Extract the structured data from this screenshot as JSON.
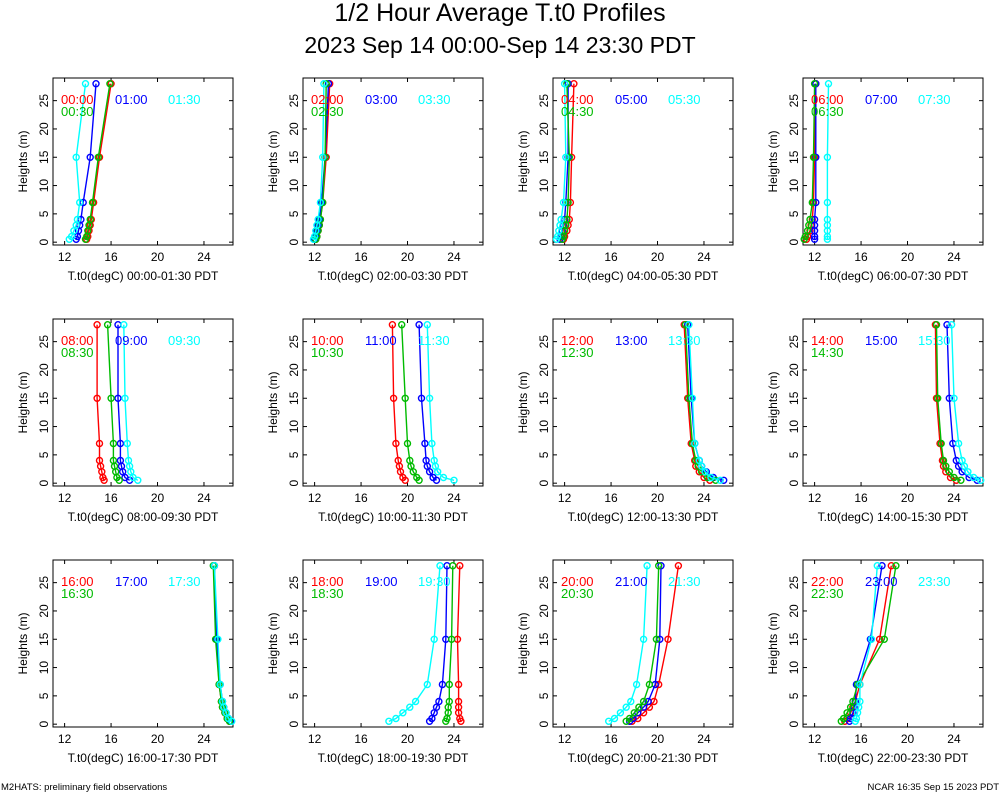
{
  "title": {
    "line1": "1/2 Hour Average T.t0 Profiles",
    "line2": "2023 Sep 14 00:00-Sep 14 23:30 PDT"
  },
  "footer": {
    "left": "M2HATS: preliminary field observations",
    "right": "NCAR 16:35 Sep 15 2023 PDT"
  },
  "colors": {
    "first": "#ff0000",
    "second": "#0000ff",
    "third": "#00bb00",
    "fourth": "#00ffff"
  },
  "chart_data": [
    {
      "type": "line",
      "title": "",
      "xlabel": "T.t0(degC) 00:00-01:30 PDT",
      "ylabel": "Heights (m)",
      "xlim": [
        11,
        26.5
      ],
      "ylim": [
        -0.5,
        29
      ],
      "xticks": [
        "12",
        "16",
        "20",
        "24"
      ],
      "yticks": [
        "0",
        "5",
        "10",
        "15",
        "20",
        "25"
      ],
      "heights": [
        0.5,
        1,
        2,
        3,
        4,
        7,
        15,
        28
      ],
      "series": [
        {
          "name": "00:00",
          "color": "#ff0000",
          "values": [
            13.9,
            14.0,
            14.1,
            14.2,
            14.3,
            14.5,
            15.0,
            16.0
          ]
        },
        {
          "name": "01:00",
          "color": "#0000ff",
          "values": [
            13.0,
            13.1,
            13.2,
            13.3,
            13.4,
            13.6,
            14.2,
            14.7
          ]
        },
        {
          "name": "00:30",
          "color": "#00bb00",
          "values": [
            13.8,
            13.9,
            14.0,
            14.1,
            14.2,
            14.4,
            14.9,
            15.9
          ]
        },
        {
          "name": "01:30",
          "color": "#00ffff",
          "values": [
            12.4,
            12.6,
            12.8,
            13.0,
            13.1,
            13.3,
            13.0,
            13.8
          ]
        }
      ]
    },
    {
      "type": "line",
      "title": "",
      "xlabel": "T.t0(degC) 02:00-03:30 PDT",
      "ylabel": "Heights (m)",
      "xlim": [
        11,
        26.5
      ],
      "ylim": [
        -0.5,
        29
      ],
      "xticks": [
        "12",
        "16",
        "20",
        "24"
      ],
      "yticks": [
        "0",
        "5",
        "10",
        "15",
        "20",
        "25"
      ],
      "heights": [
        0.5,
        1,
        2,
        3,
        4,
        7,
        15,
        28
      ],
      "series": [
        {
          "name": "02:00",
          "color": "#ff0000",
          "values": [
            12.1,
            12.2,
            12.3,
            12.4,
            12.5,
            12.7,
            13.0,
            13.3
          ]
        },
        {
          "name": "03:00",
          "color": "#0000ff",
          "values": [
            12.0,
            12.1,
            12.2,
            12.3,
            12.4,
            12.6,
            12.9,
            13.2
          ]
        },
        {
          "name": "02:30",
          "color": "#00bb00",
          "values": [
            12.1,
            12.2,
            12.3,
            12.4,
            12.5,
            12.7,
            12.9,
            13.0
          ]
        },
        {
          "name": "03:30",
          "color": "#00ffff",
          "values": [
            11.9,
            12.0,
            12.1,
            12.2,
            12.3,
            12.5,
            12.7,
            12.8
          ]
        }
      ]
    },
    {
      "type": "line",
      "title": "",
      "xlabel": "T.t0(degC) 04:00-05:30 PDT",
      "ylabel": "Heights (m)",
      "xlim": [
        11,
        26.5
      ],
      "ylim": [
        -0.5,
        29
      ],
      "xticks": [
        "12",
        "16",
        "20",
        "24"
      ],
      "yticks": [
        "0",
        "5",
        "10",
        "15",
        "20",
        "25"
      ],
      "heights": [
        0.5,
        1,
        2,
        3,
        4,
        7,
        15,
        28
      ],
      "series": [
        {
          "name": "04:00",
          "color": "#ff0000",
          "values": [
            11.9,
            12.0,
            12.2,
            12.3,
            12.4,
            12.5,
            12.6,
            12.8
          ]
        },
        {
          "name": "05:00",
          "color": "#0000ff",
          "values": [
            11.6,
            11.7,
            11.8,
            11.9,
            12.0,
            12.1,
            12.3,
            12.3
          ]
        },
        {
          "name": "04:30",
          "color": "#00bb00",
          "values": [
            11.8,
            11.9,
            12.0,
            12.1,
            12.2,
            12.3,
            12.4,
            12.2
          ]
        },
        {
          "name": "05:30",
          "color": "#00ffff",
          "values": [
            11.3,
            11.4,
            11.5,
            11.6,
            11.7,
            11.9,
            12.1,
            12.0
          ]
        }
      ]
    },
    {
      "type": "line",
      "title": "",
      "xlabel": "T.t0(degC) 06:00-07:30 PDT",
      "ylabel": "Heights (m)",
      "xlim": [
        11,
        26.5
      ],
      "ylim": [
        -0.5,
        29
      ],
      "xticks": [
        "12",
        "16",
        "20",
        "24"
      ],
      "yticks": [
        "0",
        "5",
        "10",
        "15",
        "20",
        "25"
      ],
      "heights": [
        0.5,
        1,
        2,
        3,
        4,
        7,
        15,
        28
      ],
      "series": [
        {
          "name": "06:00",
          "color": "#ff0000",
          "values": [
            11.3,
            11.4,
            11.6,
            11.7,
            11.8,
            11.9,
            12.0,
            12.1
          ]
        },
        {
          "name": "07:00",
          "color": "#0000ff",
          "values": [
            12.0,
            12.0,
            12.0,
            12.0,
            12.0,
            12.1,
            12.1,
            12.1
          ]
        },
        {
          "name": "06:30",
          "color": "#00bb00",
          "values": [
            11.1,
            11.2,
            11.4,
            11.5,
            11.6,
            11.8,
            11.9,
            12.0
          ]
        },
        {
          "name": "07:30",
          "color": "#00ffff",
          "values": [
            13.1,
            13.1,
            13.1,
            13.1,
            13.1,
            13.1,
            13.1,
            13.2
          ]
        }
      ]
    },
    {
      "type": "line",
      "title": "",
      "xlabel": "T.t0(degC) 08:00-09:30 PDT",
      "ylabel": "Heights (m)",
      "xlim": [
        11,
        26.5
      ],
      "ylim": [
        -0.5,
        29
      ],
      "xticks": [
        "12",
        "16",
        "20",
        "24"
      ],
      "yticks": [
        "0",
        "5",
        "10",
        "15",
        "20",
        "25"
      ],
      "heights": [
        0.5,
        1,
        2,
        3,
        4,
        7,
        15,
        28
      ],
      "series": [
        {
          "name": "08:00",
          "color": "#ff0000",
          "values": [
            15.4,
            15.3,
            15.2,
            15.1,
            15.0,
            15.0,
            14.8,
            14.8
          ]
        },
        {
          "name": "09:00",
          "color": "#0000ff",
          "values": [
            17.6,
            17.2,
            17.0,
            16.9,
            16.8,
            16.8,
            16.6,
            16.6
          ]
        },
        {
          "name": "08:30",
          "color": "#00bb00",
          "values": [
            16.7,
            16.5,
            16.4,
            16.3,
            16.2,
            16.2,
            16.0,
            15.7
          ]
        },
        {
          "name": "09:30",
          "color": "#00ffff",
          "values": [
            18.3,
            17.9,
            17.7,
            17.6,
            17.5,
            17.4,
            17.2,
            17.1
          ]
        }
      ]
    },
    {
      "type": "line",
      "title": "",
      "xlabel": "T.t0(degC) 10:00-11:30 PDT",
      "ylabel": "Heights (m)",
      "xlim": [
        11,
        26.5
      ],
      "ylim": [
        -0.5,
        29
      ],
      "xticks": [
        "12",
        "16",
        "20",
        "24"
      ],
      "yticks": [
        "0",
        "5",
        "10",
        "15",
        "20",
        "25"
      ],
      "heights": [
        0.5,
        1,
        2,
        3,
        4,
        7,
        15,
        28
      ],
      "series": [
        {
          "name": "10:00",
          "color": "#ff0000",
          "values": [
            19.8,
            19.6,
            19.4,
            19.3,
            19.2,
            19.0,
            18.8,
            18.7
          ]
        },
        {
          "name": "11:00",
          "color": "#0000ff",
          "values": [
            22.5,
            22.2,
            21.9,
            21.7,
            21.6,
            21.5,
            21.2,
            21.0
          ]
        },
        {
          "name": "10:30",
          "color": "#00bb00",
          "values": [
            21.0,
            20.8,
            20.5,
            20.3,
            20.2,
            20.0,
            19.8,
            19.5
          ]
        },
        {
          "name": "11:30",
          "color": "#00ffff",
          "values": [
            24.0,
            23.1,
            22.6,
            22.4,
            22.3,
            22.1,
            21.9,
            21.7
          ]
        }
      ]
    },
    {
      "type": "line",
      "title": "",
      "xlabel": "T.t0(degC) 12:00-13:30 PDT",
      "ylabel": "Heights (m)",
      "xlim": [
        11,
        26.5
      ],
      "ylim": [
        -0.5,
        29
      ],
      "xticks": [
        "12",
        "16",
        "20",
        "24"
      ],
      "yticks": [
        "0",
        "5",
        "10",
        "15",
        "20",
        "25"
      ],
      "heights": [
        0.5,
        1,
        2,
        3,
        4,
        7,
        15,
        28
      ],
      "series": [
        {
          "name": "12:00",
          "color": "#ff0000",
          "values": [
            24.5,
            24.0,
            23.6,
            23.3,
            23.2,
            22.9,
            22.6,
            22.3
          ]
        },
        {
          "name": "13:00",
          "color": "#0000ff",
          "values": [
            25.7,
            24.8,
            24.2,
            23.8,
            23.6,
            23.2,
            22.9,
            22.6
          ]
        },
        {
          "name": "12:30",
          "color": "#00bb00",
          "values": [
            25.0,
            24.3,
            23.8,
            23.5,
            23.3,
            23.0,
            22.7,
            22.4
          ]
        },
        {
          "name": "13:30",
          "color": "#00ffff",
          "values": [
            25.4,
            24.6,
            24.1,
            23.8,
            23.6,
            23.2,
            23.0,
            22.7
          ]
        }
      ]
    },
    {
      "type": "line",
      "title": "",
      "xlabel": "T.t0(degC) 14:00-15:30 PDT",
      "ylabel": "Heights (m)",
      "xlim": [
        11,
        26.5
      ],
      "ylim": [
        -0.5,
        29
      ],
      "xticks": [
        "12",
        "16",
        "20",
        "24"
      ],
      "yticks": [
        "0",
        "5",
        "10",
        "15",
        "20",
        "25"
      ],
      "heights": [
        0.5,
        1,
        2,
        3,
        4,
        7,
        15,
        28
      ],
      "series": [
        {
          "name": "14:00",
          "color": "#ff0000",
          "values": [
            24.2,
            23.7,
            23.3,
            23.1,
            23.0,
            22.8,
            22.5,
            22.4
          ]
        },
        {
          "name": "15:00",
          "color": "#0000ff",
          "values": [
            26.0,
            25.3,
            24.7,
            24.4,
            24.2,
            23.9,
            23.6,
            23.4
          ]
        },
        {
          "name": "14:30",
          "color": "#00bb00",
          "values": [
            24.6,
            24.0,
            23.6,
            23.3,
            23.1,
            22.9,
            22.6,
            22.5
          ]
        },
        {
          "name": "15:30",
          "color": "#00ffff",
          "values": [
            26.3,
            25.7,
            25.2,
            24.9,
            24.7,
            24.4,
            24.0,
            23.8
          ]
        }
      ]
    },
    {
      "type": "line",
      "title": "",
      "xlabel": "T.t0(degC) 16:00-17:30 PDT",
      "ylabel": "Heights (m)",
      "xlim": [
        11,
        26.5
      ],
      "ylim": [
        -0.5,
        29
      ],
      "xticks": [
        "12",
        "16",
        "20",
        "24"
      ],
      "yticks": [
        "0",
        "5",
        "10",
        "15",
        "20",
        "25"
      ],
      "heights": [
        0.5,
        1,
        2,
        3,
        4,
        7,
        15,
        28
      ],
      "series": [
        {
          "name": "16:00",
          "color": "#ff0000",
          "values": [
            26.2,
            26.0,
            25.8,
            25.6,
            25.5,
            25.3,
            25.1,
            24.9
          ]
        },
        {
          "name": "17:00",
          "color": "#0000ff",
          "values": [
            26.3,
            26.1,
            25.9,
            25.7,
            25.6,
            25.4,
            25.1,
            24.9
          ]
        },
        {
          "name": "16:30",
          "color": "#00bb00",
          "values": [
            26.2,
            26.0,
            25.8,
            25.6,
            25.5,
            25.3,
            25.0,
            24.8
          ]
        },
        {
          "name": "17:30",
          "color": "#00ffff",
          "values": [
            26.4,
            26.1,
            25.9,
            25.7,
            25.6,
            25.4,
            25.2,
            24.9
          ]
        }
      ]
    },
    {
      "type": "line",
      "title": "",
      "xlabel": "T.t0(degC) 18:00-19:30 PDT",
      "ylabel": "Heights (m)",
      "xlim": [
        11,
        26.5
      ],
      "ylim": [
        -0.5,
        29
      ],
      "xticks": [
        "12",
        "16",
        "20",
        "24"
      ],
      "yticks": [
        "0",
        "5",
        "10",
        "15",
        "20",
        "25"
      ],
      "heights": [
        0.5,
        1,
        2,
        3,
        4,
        7,
        15,
        28
      ],
      "series": [
        {
          "name": "18:00",
          "color": "#ff0000",
          "values": [
            24.6,
            24.5,
            24.4,
            24.4,
            24.4,
            24.4,
            24.3,
            24.5
          ]
        },
        {
          "name": "19:00",
          "color": "#0000ff",
          "values": [
            21.9,
            22.1,
            22.3,
            22.5,
            22.7,
            23.0,
            23.3,
            23.4
          ]
        },
        {
          "name": "18:30",
          "color": "#00bb00",
          "values": [
            23.3,
            23.4,
            23.5,
            23.5,
            23.6,
            23.6,
            23.8,
            23.9
          ]
        },
        {
          "name": "19:30",
          "color": "#00ffff",
          "values": [
            18.4,
            19.0,
            19.6,
            20.2,
            20.7,
            21.7,
            22.3,
            22.8
          ]
        }
      ]
    },
    {
      "type": "line",
      "title": "",
      "xlabel": "T.t0(degC) 20:00-21:30 PDT",
      "ylabel": "Heights (m)",
      "xlim": [
        11,
        26.5
      ],
      "ylim": [
        -0.5,
        29
      ],
      "xticks": [
        "12",
        "16",
        "20",
        "24"
      ],
      "yticks": [
        "0",
        "5",
        "10",
        "15",
        "20",
        "25"
      ],
      "heights": [
        0.5,
        1,
        2,
        3,
        4,
        7,
        15,
        28
      ],
      "series": [
        {
          "name": "20:00",
          "color": "#ff0000",
          "values": [
            17.8,
            18.3,
            18.8,
            19.3,
            19.7,
            20.1,
            20.9,
            21.8
          ]
        },
        {
          "name": "21:00",
          "color": "#0000ff",
          "values": [
            17.6,
            17.9,
            18.3,
            18.8,
            19.2,
            19.8,
            20.2,
            20.3
          ]
        },
        {
          "name": "20:30",
          "color": "#00bb00",
          "values": [
            17.3,
            17.6,
            18.0,
            18.4,
            18.8,
            19.3,
            19.9,
            20.1
          ]
        },
        {
          "name": "21:30",
          "color": "#00ffff",
          "values": [
            15.8,
            16.3,
            16.8,
            17.3,
            17.7,
            18.2,
            18.8,
            19.1
          ]
        }
      ]
    },
    {
      "type": "line",
      "title": "",
      "xlabel": "T.t0(degC) 22:00-23:30 PDT",
      "ylabel": "Heights (m)",
      "xlim": [
        11,
        26.5
      ],
      "ylim": [
        -0.5,
        29
      ],
      "xticks": [
        "12",
        "16",
        "20",
        "24"
      ],
      "yticks": [
        "0",
        "5",
        "10",
        "15",
        "20",
        "25"
      ],
      "heights": [
        0.5,
        1,
        2,
        3,
        4,
        7,
        15,
        28
      ],
      "series": [
        {
          "name": "22:00",
          "color": "#ff0000",
          "values": [
            14.6,
            14.8,
            15.1,
            15.3,
            15.5,
            15.9,
            17.6,
            18.6
          ]
        },
        {
          "name": "23:00",
          "color": "#0000ff",
          "values": [
            15.0,
            15.1,
            15.3,
            15.4,
            15.5,
            15.6,
            16.8,
            17.8
          ]
        },
        {
          "name": "22:30",
          "color": "#00bb00",
          "values": [
            14.3,
            14.5,
            14.8,
            15.1,
            15.3,
            15.7,
            18.0,
            19.0
          ]
        },
        {
          "name": "23:30",
          "color": "#00ffff",
          "values": [
            15.5,
            15.6,
            15.7,
            15.8,
            15.9,
            15.9,
            16.9,
            17.4
          ]
        }
      ]
    }
  ]
}
